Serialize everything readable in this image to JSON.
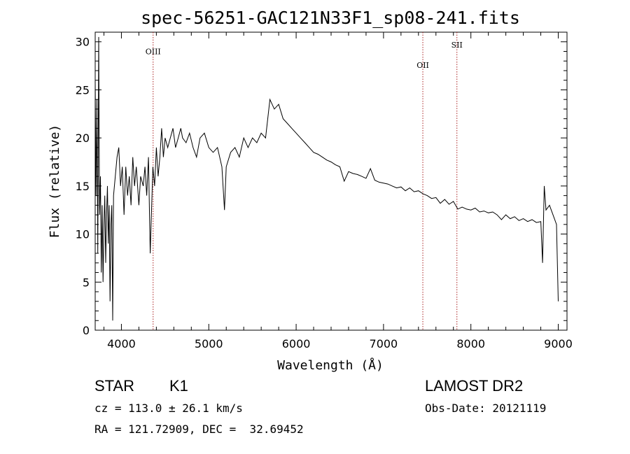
{
  "info": {
    "object_class": "STAR",
    "subclass": "K1",
    "survey": "LAMOST DR2",
    "cz": "cz = 113.0 ± 26.1 km/s",
    "obs_date": "Obs-Date: 20121119",
    "radec": "RA = 121.72909, DEC =  32.69452"
  },
  "chart_data": {
    "type": "line",
    "title": "spec-56251-GAC121N33F1_sp08-241.fits",
    "xlabel": "Wavelength (Å)",
    "ylabel": "Flux (relative)",
    "xlim": [
      3700,
      9100
    ],
    "ylim": [
      0,
      31
    ],
    "xticks": [
      4000,
      5000,
      6000,
      7000,
      8000,
      9000
    ],
    "yticks": [
      0,
      5,
      10,
      15,
      20,
      25,
      30
    ],
    "line_color": "#000000",
    "marker_color": "#aa2222",
    "lines": [
      {
        "label": "OIII",
        "x": 4363,
        "label_y": 28.7
      },
      {
        "label": "OII",
        "x": 7450,
        "label_y": 27.3
      },
      {
        "label": "SII",
        "x": 7840,
        "label_y": 29.4
      }
    ],
    "series": [
      {
        "values": [
          [
            3700,
            26
          ],
          [
            3710,
            14
          ],
          [
            3720,
            24
          ],
          [
            3730,
            8
          ],
          [
            3740,
            30.5
          ],
          [
            3750,
            12
          ],
          [
            3760,
            16
          ],
          [
            3770,
            6
          ],
          [
            3780,
            13
          ],
          [
            3790,
            5
          ],
          [
            3800,
            11
          ],
          [
            3810,
            14
          ],
          [
            3820,
            7
          ],
          [
            3830,
            12
          ],
          [
            3840,
            15
          ],
          [
            3850,
            9
          ],
          [
            3860,
            13
          ],
          [
            3870,
            3
          ],
          [
            3880,
            11
          ],
          [
            3890,
            13
          ],
          [
            3900,
            1
          ],
          [
            3910,
            14
          ],
          [
            3930,
            16
          ],
          [
            3950,
            18
          ],
          [
            3970,
            19
          ],
          [
            3990,
            15
          ],
          [
            4010,
            17
          ],
          [
            4030,
            12
          ],
          [
            4050,
            17
          ],
          [
            4070,
            14
          ],
          [
            4090,
            16
          ],
          [
            4110,
            13
          ],
          [
            4130,
            18
          ],
          [
            4150,
            15
          ],
          [
            4170,
            17
          ],
          [
            4200,
            13
          ],
          [
            4220,
            16
          ],
          [
            4250,
            15
          ],
          [
            4270,
            17
          ],
          [
            4290,
            14
          ],
          [
            4310,
            18
          ],
          [
            4330,
            8
          ],
          [
            4360,
            17
          ],
          [
            4380,
            15
          ],
          [
            4400,
            19
          ],
          [
            4420,
            16
          ],
          [
            4440,
            18
          ],
          [
            4460,
            21
          ],
          [
            4480,
            18
          ],
          [
            4500,
            20
          ],
          [
            4530,
            19
          ],
          [
            4560,
            20
          ],
          [
            4590,
            21
          ],
          [
            4620,
            19
          ],
          [
            4650,
            20
          ],
          [
            4680,
            21
          ],
          [
            4700,
            20
          ],
          [
            4740,
            19.5
          ],
          [
            4780,
            20.5
          ],
          [
            4820,
            19
          ],
          [
            4860,
            18
          ],
          [
            4900,
            20
          ],
          [
            4950,
            20.5
          ],
          [
            5000,
            19
          ],
          [
            5050,
            18.5
          ],
          [
            5100,
            19
          ],
          [
            5150,
            17
          ],
          [
            5180,
            12.5
          ],
          [
            5200,
            17
          ],
          [
            5250,
            18.5
          ],
          [
            5300,
            19
          ],
          [
            5350,
            18
          ],
          [
            5400,
            20
          ],
          [
            5450,
            19
          ],
          [
            5500,
            20
          ],
          [
            5550,
            19.5
          ],
          [
            5600,
            20.5
          ],
          [
            5650,
            20
          ],
          [
            5700,
            24
          ],
          [
            5750,
            23
          ],
          [
            5800,
            23.5
          ],
          [
            5850,
            22
          ],
          [
            5900,
            21.5
          ],
          [
            5950,
            21
          ],
          [
            6000,
            20.5
          ],
          [
            6050,
            20
          ],
          [
            6100,
            19.5
          ],
          [
            6150,
            19
          ],
          [
            6200,
            18.5
          ],
          [
            6250,
            18.3
          ],
          [
            6300,
            18
          ],
          [
            6350,
            17.7
          ],
          [
            6400,
            17.5
          ],
          [
            6450,
            17.2
          ],
          [
            6500,
            17
          ],
          [
            6550,
            15.5
          ],
          [
            6600,
            16.5
          ],
          [
            6650,
            16.3
          ],
          [
            6700,
            16.2
          ],
          [
            6750,
            16
          ],
          [
            6800,
            15.8
          ],
          [
            6850,
            16.8
          ],
          [
            6900,
            15.6
          ],
          [
            6950,
            15.4
          ],
          [
            7000,
            15.3
          ],
          [
            7050,
            15.2
          ],
          [
            7100,
            15
          ],
          [
            7150,
            14.8
          ],
          [
            7200,
            14.9
          ],
          [
            7250,
            14.5
          ],
          [
            7300,
            14.8
          ],
          [
            7350,
            14.4
          ],
          [
            7400,
            14.5
          ],
          [
            7450,
            14.2
          ],
          [
            7500,
            14
          ],
          [
            7550,
            13.7
          ],
          [
            7600,
            13.8
          ],
          [
            7650,
            13.2
          ],
          [
            7700,
            13.6
          ],
          [
            7750,
            13.1
          ],
          [
            7800,
            13.4
          ],
          [
            7850,
            12.6
          ],
          [
            7900,
            12.8
          ],
          [
            7950,
            12.6
          ],
          [
            8000,
            12.5
          ],
          [
            8050,
            12.7
          ],
          [
            8100,
            12.3
          ],
          [
            8150,
            12.4
          ],
          [
            8200,
            12.2
          ],
          [
            8250,
            12.3
          ],
          [
            8300,
            12
          ],
          [
            8350,
            11.5
          ],
          [
            8400,
            12
          ],
          [
            8450,
            11.6
          ],
          [
            8500,
            11.8
          ],
          [
            8550,
            11.4
          ],
          [
            8600,
            11.6
          ],
          [
            8650,
            11.3
          ],
          [
            8700,
            11.5
          ],
          [
            8750,
            11.2
          ],
          [
            8800,
            11.3
          ],
          [
            8820,
            7
          ],
          [
            8840,
            15
          ],
          [
            8860,
            12.5
          ],
          [
            8900,
            13
          ],
          [
            8940,
            12
          ],
          [
            8980,
            11
          ],
          [
            9000,
            3
          ]
        ]
      }
    ]
  }
}
